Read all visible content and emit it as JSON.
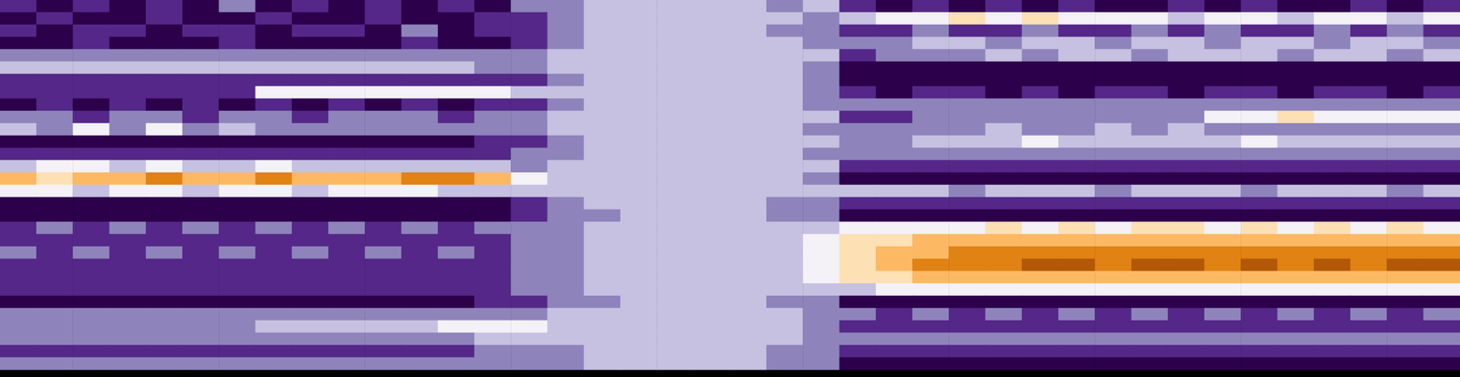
{
  "chart_data": {
    "type": "heatmap",
    "tick_labels": false,
    "grid": false,
    "cells": [
      [
        2,
        1,
        2,
        1,
        2,
        1,
        3,
        1,
        2,
        1,
        2,
        1,
        2,
        1,
        3,
        3,
        4,
        4,
        4,
        4,
        4,
        3,
        4,
        2,
        1,
        2,
        1,
        2,
        1,
        2,
        1,
        1,
        2,
        1,
        2,
        1,
        1,
        2,
        1,
        2
      ],
      [
        1,
        2,
        1,
        1,
        2,
        1,
        1,
        2,
        1,
        1,
        2,
        1,
        1,
        2,
        2,
        3,
        4,
        4,
        4,
        4,
        4,
        4,
        3,
        4,
        5,
        5,
        6,
        5,
        6,
        5,
        5,
        5,
        4,
        5,
        5,
        4,
        5,
        5,
        4,
        5
      ],
      [
        2,
        1,
        2,
        2,
        1,
        2,
        2,
        1,
        2,
        2,
        1,
        3,
        1,
        2,
        2,
        3,
        4,
        4,
        4,
        4,
        4,
        3,
        3,
        2,
        2,
        3,
        2,
        2,
        3,
        2,
        2,
        3,
        2,
        3,
        2,
        2,
        3,
        2,
        3,
        2
      ],
      [
        1,
        1,
        2,
        1,
        1,
        1,
        2,
        1,
        1,
        1,
        1,
        2,
        1,
        1,
        2,
        3,
        4,
        4,
        4,
        4,
        4,
        4,
        3,
        3,
        3,
        4,
        4,
        3,
        4,
        4,
        3,
        4,
        4,
        3,
        4,
        4,
        3,
        4,
        4,
        3
      ],
      [
        3,
        3,
        3,
        3,
        3,
        3,
        3,
        3,
        3,
        3,
        3,
        3,
        3,
        3,
        3,
        4,
        4,
        4,
        4,
        4,
        4,
        4,
        4,
        2,
        3,
        3,
        3,
        4,
        3,
        4,
        4,
        3,
        4,
        4,
        4,
        3,
        4,
        4,
        3,
        4
      ],
      [
        4,
        4,
        4,
        4,
        4,
        4,
        4,
        4,
        4,
        4,
        4,
        4,
        4,
        3,
        3,
        4,
        4,
        4,
        4,
        4,
        4,
        4,
        3,
        1,
        1,
        1,
        1,
        1,
        1,
        1,
        1,
        1,
        1,
        1,
        1,
        1,
        1,
        1,
        1,
        1
      ],
      [
        2,
        2,
        2,
        2,
        2,
        2,
        2,
        2,
        2,
        2,
        2,
        2,
        2,
        2,
        2,
        3,
        4,
        4,
        4,
        4,
        4,
        4,
        3,
        1,
        1,
        1,
        1,
        1,
        1,
        1,
        1,
        1,
        1,
        1,
        1,
        1,
        1,
        1,
        1,
        1
      ],
      [
        2,
        2,
        2,
        2,
        2,
        2,
        2,
        5,
        5,
        5,
        5,
        5,
        5,
        5,
        4,
        4,
        4,
        4,
        4,
        4,
        4,
        4,
        3,
        2,
        1,
        2,
        2,
        1,
        2,
        1,
        2,
        2,
        1,
        2,
        2,
        1,
        2,
        2,
        1,
        2
      ],
      [
        1,
        2,
        1,
        2,
        1,
        2,
        1,
        2,
        1,
        2,
        1,
        2,
        1,
        2,
        2,
        3,
        4,
        4,
        4,
        4,
        4,
        4,
        3,
        3,
        3,
        3,
        3,
        3,
        3,
        3,
        3,
        3,
        3,
        3,
        3,
        3,
        3,
        3,
        3,
        3
      ],
      [
        3,
        3,
        2,
        3,
        3,
        2,
        3,
        3,
        2,
        3,
        3,
        3,
        2,
        3,
        3,
        4,
        4,
        4,
        4,
        4,
        4,
        4,
        4,
        2,
        2,
        3,
        3,
        3,
        3,
        3,
        3,
        3,
        3,
        5,
        5,
        6,
        5,
        5,
        5,
        5
      ],
      [
        4,
        3,
        5,
        3,
        5,
        3,
        4,
        3,
        3,
        3,
        3,
        3,
        3,
        3,
        3,
        4,
        4,
        4,
        4,
        4,
        4,
        4,
        3,
        3,
        3,
        3,
        3,
        4,
        3,
        3,
        4,
        3,
        4,
        3,
        3,
        3,
        3,
        3,
        3,
        3
      ],
      [
        1,
        1,
        1,
        1,
        1,
        1,
        1,
        1,
        1,
        1,
        1,
        1,
        1,
        2,
        2,
        3,
        4,
        4,
        4,
        4,
        4,
        4,
        4,
        3,
        3,
        4,
        4,
        4,
        5,
        4,
        4,
        4,
        4,
        4,
        5,
        4,
        4,
        4,
        4,
        4
      ],
      [
        2,
        2,
        2,
        2,
        2,
        2,
        2,
        2,
        2,
        2,
        2,
        2,
        2,
        2,
        3,
        3,
        4,
        4,
        4,
        4,
        4,
        4,
        3,
        3,
        3,
        3,
        3,
        3,
        3,
        3,
        3,
        3,
        3,
        3,
        3,
        3,
        3,
        3,
        3,
        3
      ],
      [
        4,
        5,
        5,
        4,
        5,
        4,
        4,
        5,
        4,
        4,
        4,
        4,
        4,
        4,
        3,
        4,
        4,
        4,
        4,
        4,
        4,
        4,
        4,
        2,
        2,
        2,
        2,
        2,
        2,
        2,
        2,
        2,
        2,
        2,
        2,
        2,
        2,
        2,
        2,
        2
      ],
      [
        7,
        6,
        7,
        7,
        8,
        7,
        7,
        8,
        7,
        7,
        7,
        8,
        8,
        7,
        5,
        4,
        4,
        4,
        4,
        4,
        4,
        4,
        3,
        1,
        1,
        1,
        1,
        1,
        1,
        1,
        1,
        1,
        1,
        1,
        1,
        1,
        1,
        1,
        1,
        1
      ],
      [
        5,
        5,
        4,
        5,
        5,
        4,
        5,
        5,
        4,
        5,
        5,
        5,
        4,
        4,
        4,
        4,
        4,
        4,
        4,
        4,
        4,
        4,
        4,
        4,
        4,
        4,
        3,
        4,
        4,
        4,
        3,
        4,
        4,
        4,
        3,
        4,
        4,
        4,
        3,
        4
      ],
      [
        1,
        1,
        1,
        1,
        1,
        1,
        1,
        1,
        1,
        1,
        1,
        1,
        1,
        1,
        2,
        3,
        4,
        4,
        4,
        4,
        4,
        3,
        3,
        2,
        2,
        2,
        2,
        2,
        2,
        2,
        2,
        2,
        2,
        2,
        2,
        2,
        2,
        2,
        2,
        2
      ],
      [
        1,
        1,
        1,
        1,
        1,
        1,
        1,
        1,
        1,
        1,
        1,
        1,
        1,
        1,
        2,
        3,
        3,
        4,
        4,
        4,
        4,
        3,
        3,
        1,
        1,
        1,
        1,
        1,
        1,
        1,
        1,
        1,
        1,
        1,
        1,
        1,
        1,
        1,
        1,
        1
      ],
      [
        2,
        3,
        2,
        3,
        2,
        3,
        2,
        3,
        2,
        3,
        2,
        3,
        2,
        3,
        3,
        3,
        4,
        4,
        4,
        4,
        4,
        4,
        4,
        5,
        5,
        5,
        5,
        6,
        5,
        6,
        5,
        6,
        6,
        5,
        6,
        5,
        6,
        5,
        6,
        5
      ],
      [
        2,
        2,
        2,
        2,
        2,
        2,
        2,
        2,
        2,
        2,
        2,
        2,
        2,
        2,
        3,
        3,
        4,
        4,
        4,
        4,
        4,
        4,
        5,
        6,
        6,
        7,
        7,
        7,
        7,
        7,
        7,
        7,
        7,
        7,
        7,
        7,
        7,
        7,
        7,
        7
      ],
      [
        3,
        2,
        3,
        2,
        3,
        2,
        3,
        2,
        3,
        2,
        3,
        2,
        3,
        2,
        3,
        3,
        4,
        4,
        4,
        4,
        4,
        4,
        5,
        6,
        7,
        7,
        8,
        8,
        8,
        8,
        8,
        8,
        8,
        8,
        8,
        8,
        8,
        8,
        8,
        8
      ],
      [
        2,
        2,
        2,
        2,
        2,
        2,
        2,
        2,
        2,
        2,
        2,
        2,
        2,
        2,
        3,
        3,
        4,
        4,
        4,
        4,
        4,
        4,
        5,
        6,
        7,
        8,
        8,
        8,
        9,
        9,
        8,
        9,
        9,
        8,
        9,
        8,
        9,
        8,
        9,
        9
      ],
      [
        2,
        2,
        2,
        2,
        2,
        2,
        2,
        2,
        2,
        2,
        2,
        2,
        2,
        2,
        3,
        3,
        4,
        4,
        4,
        4,
        4,
        4,
        5,
        6,
        6,
        7,
        7,
        7,
        7,
        7,
        7,
        7,
        7,
        7,
        7,
        7,
        7,
        7,
        7,
        7
      ],
      [
        2,
        2,
        2,
        2,
        2,
        2,
        2,
        2,
        2,
        2,
        2,
        2,
        2,
        2,
        3,
        3,
        4,
        4,
        4,
        4,
        4,
        4,
        4,
        4,
        5,
        5,
        5,
        5,
        5,
        5,
        5,
        5,
        5,
        5,
        5,
        5,
        5,
        5,
        5,
        5
      ],
      [
        1,
        1,
        1,
        1,
        1,
        1,
        1,
        1,
        1,
        1,
        1,
        1,
        1,
        2,
        2,
        3,
        3,
        4,
        4,
        4,
        4,
        3,
        3,
        1,
        1,
        1,
        1,
        1,
        1,
        1,
        1,
        1,
        1,
        1,
        1,
        1,
        1,
        1,
        1,
        1
      ],
      [
        3,
        3,
        3,
        3,
        3,
        3,
        3,
        3,
        3,
        3,
        3,
        3,
        3,
        3,
        3,
        4,
        4,
        4,
        4,
        4,
        4,
        4,
        3,
        3,
        2,
        3,
        2,
        3,
        2,
        3,
        2,
        3,
        2,
        3,
        2,
        3,
        2,
        3,
        2,
        3
      ],
      [
        3,
        3,
        3,
        3,
        3,
        3,
        3,
        4,
        4,
        4,
        4,
        4,
        5,
        5,
        5,
        4,
        4,
        4,
        4,
        4,
        4,
        4,
        3,
        2,
        2,
        2,
        2,
        2,
        2,
        2,
        2,
        2,
        2,
        2,
        2,
        2,
        2,
        2,
        2,
        2
      ],
      [
        3,
        3,
        3,
        3,
        3,
        3,
        3,
        3,
        3,
        3,
        3,
        3,
        3,
        4,
        4,
        4,
        4,
        4,
        4,
        4,
        4,
        4,
        3,
        3,
        3,
        3,
        3,
        3,
        3,
        3,
        3,
        3,
        3,
        3,
        3,
        3,
        3,
        3,
        3,
        3
      ],
      [
        2,
        2,
        2,
        2,
        2,
        2,
        2,
        2,
        2,
        2,
        2,
        2,
        2,
        3,
        3,
        3,
        4,
        4,
        4,
        4,
        4,
        3,
        3,
        2,
        2,
        2,
        2,
        2,
        2,
        2,
        2,
        2,
        2,
        2,
        2,
        2,
        2,
        2,
        2,
        2
      ],
      [
        3,
        3,
        3,
        3,
        3,
        3,
        3,
        3,
        3,
        3,
        3,
        3,
        3,
        3,
        3,
        3,
        4,
        4,
        4,
        4,
        4,
        3,
        3,
        1,
        1,
        1,
        1,
        1,
        1,
        1,
        1,
        1,
        1,
        1,
        1,
        1,
        1,
        1,
        1,
        1
      ]
    ]
  }
}
